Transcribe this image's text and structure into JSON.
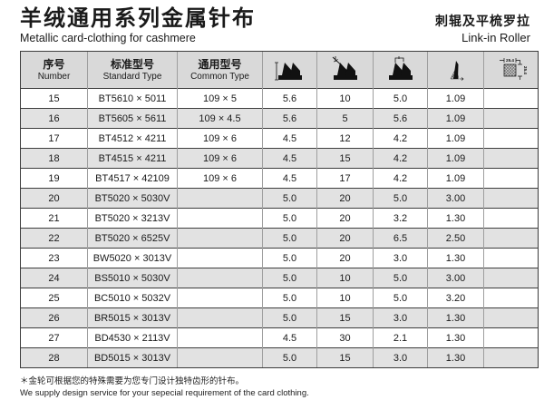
{
  "page": {
    "title_zh": "羊绒通用系列金属针布",
    "title_en": "Metallic card-clothing for cashmere",
    "subtitle_zh": "刺辊及平梳罗拉",
    "subtitle_en": "Link-in Roller"
  },
  "table": {
    "columns": [
      {
        "key": "number",
        "zh": "序号",
        "en": "Number"
      },
      {
        "key": "standard-type",
        "zh": "标准型号",
        "en": "Standard Type"
      },
      {
        "key": "common-type",
        "zh": "通用型号",
        "en": "Common Type"
      },
      {
        "key": "tooth-total-height",
        "icon": "tooth-height-icon"
      },
      {
        "key": "tooth-front-angle",
        "icon": "tooth-angle-icon"
      },
      {
        "key": "tooth-pitch",
        "icon": "tooth-pitch-icon"
      },
      {
        "key": "rib-width",
        "icon": "tooth-rib-icon"
      },
      {
        "key": "tooth-density",
        "icon": "tooth-density-icon"
      }
    ],
    "density_icon": {
      "top_label": "25.4",
      "side_label": "25.4"
    },
    "rows": [
      [
        "15",
        "BT5610 × 5011",
        "109 × 5",
        "5.6",
        "10",
        "5.0",
        "1.09",
        ""
      ],
      [
        "16",
        "BT5605 × 5611",
        "109 × 4.5",
        "5.6",
        "5",
        "5.6",
        "1.09",
        ""
      ],
      [
        "17",
        "BT4512 × 4211",
        "109 × 6",
        "4.5",
        "12",
        "4.2",
        "1.09",
        ""
      ],
      [
        "18",
        "BT4515 × 4211",
        "109 × 6",
        "4.5",
        "15",
        "4.2",
        "1.09",
        ""
      ],
      [
        "19",
        "BT4517 × 42109",
        "109 × 6",
        "4.5",
        "17",
        "4.2",
        "1.09",
        ""
      ],
      [
        "20",
        "BT5020 × 5030V",
        "",
        "5.0",
        "20",
        "5.0",
        "3.00",
        ""
      ],
      [
        "21",
        "BT5020 × 3213V",
        "",
        "5.0",
        "20",
        "3.2",
        "1.30",
        ""
      ],
      [
        "22",
        "BT5020 × 6525V",
        "",
        "5.0",
        "20",
        "6.5",
        "2.50",
        ""
      ],
      [
        "23",
        "BW5020 × 3013V",
        "",
        "5.0",
        "20",
        "3.0",
        "1.30",
        ""
      ],
      [
        "24",
        "BS5010 × 5030V",
        "",
        "5.0",
        "10",
        "5.0",
        "3.00",
        ""
      ],
      [
        "25",
        "BC5010 × 5032V",
        "",
        "5.0",
        "10",
        "5.0",
        "3.20",
        ""
      ],
      [
        "26",
        "BR5015 × 3013V",
        "",
        "5.0",
        "15",
        "3.0",
        "1.30",
        ""
      ],
      [
        "27",
        "BD4530 × 2113V",
        "",
        "4.5",
        "30",
        "2.1",
        "1.30",
        ""
      ],
      [
        "28",
        "BD5015 × 3013V",
        "",
        "5.0",
        "15",
        "3.0",
        "1.30",
        ""
      ]
    ]
  },
  "footnote": {
    "zh": "＊金轮可根据您的特殊需要为您专门设计独特齿形的针布。",
    "en": "We supply design service for your sepecial requirement of the card clothing."
  },
  "colors": {
    "header_bg": "#d9d9d9",
    "stripe_bg": "#e2e2e2",
    "line_dark": "#3c3c3c",
    "line_light": "#9e9e9e",
    "text": "#1a1a1a"
  }
}
